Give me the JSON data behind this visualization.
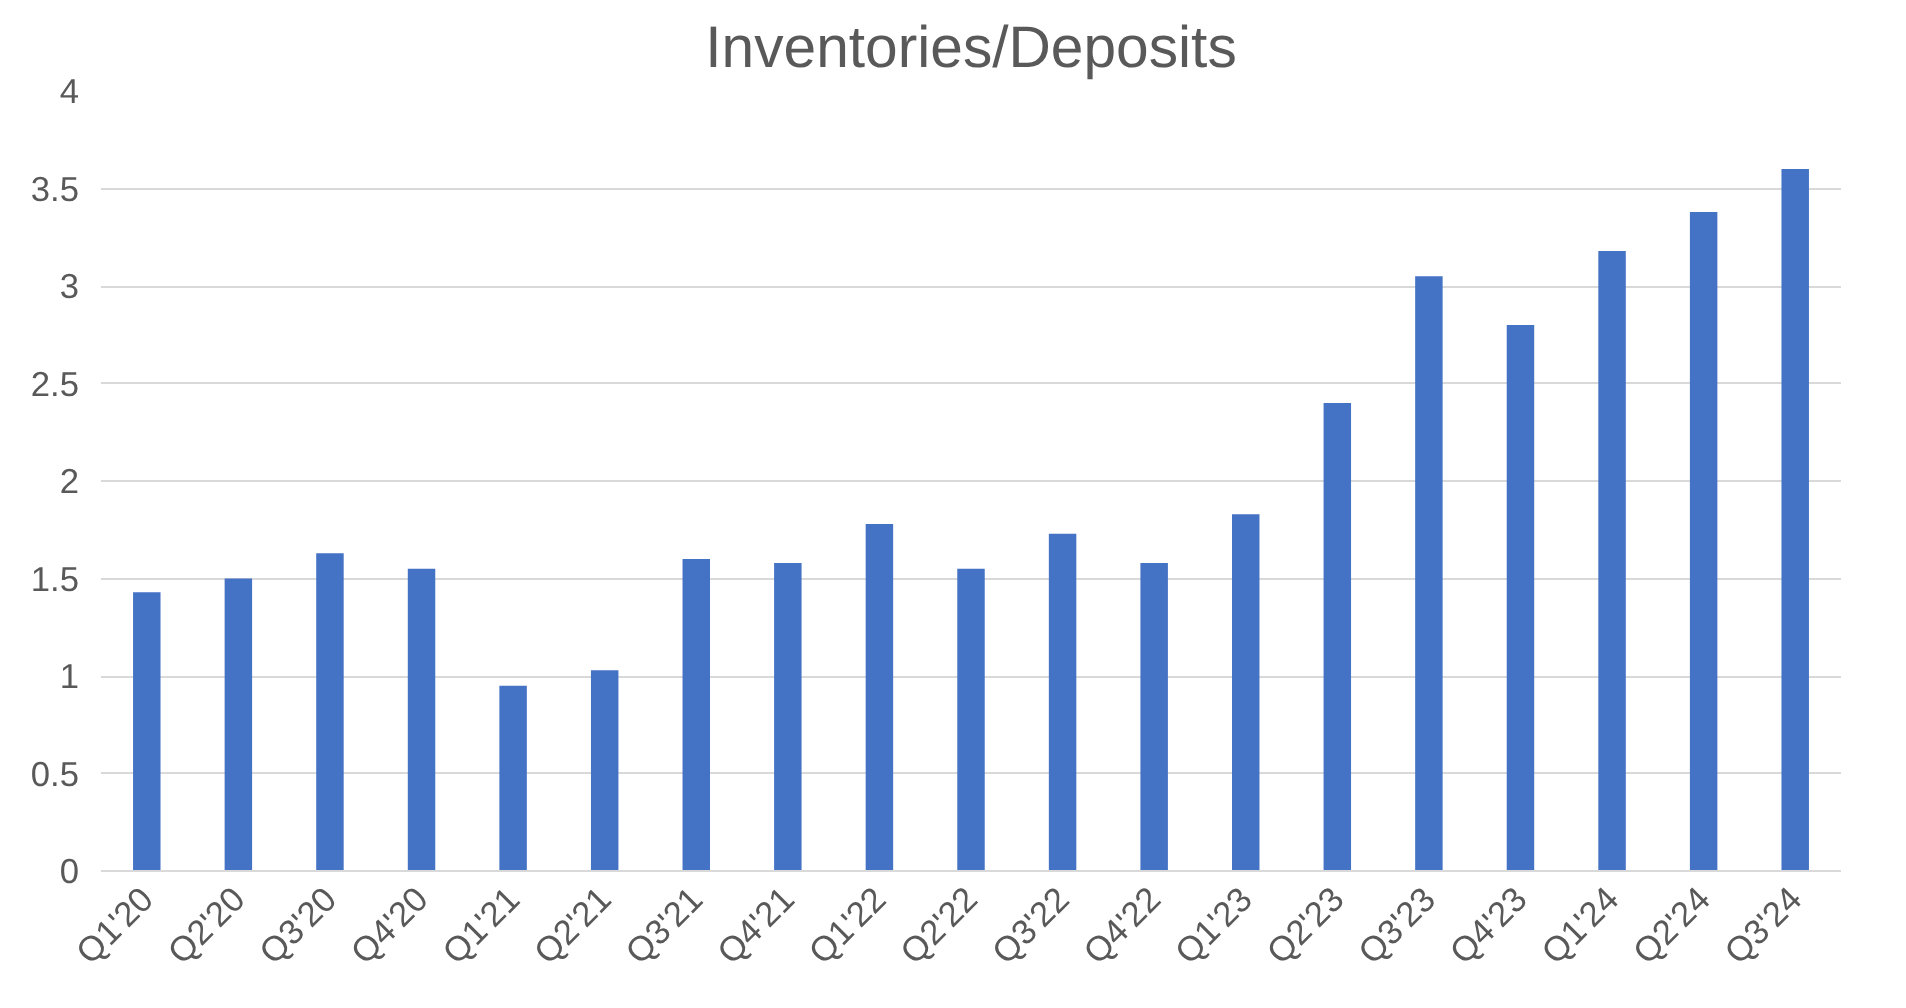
{
  "chart_data": {
    "type": "bar",
    "title": "Inventories/Deposits",
    "categories": [
      "Q1'20",
      "Q2'20",
      "Q3'20",
      "Q4'20",
      "Q1'21",
      "Q2'21",
      "Q3'21",
      "Q4'21",
      "Q1'22",
      "Q2'22",
      "Q3'22",
      "Q4'22",
      "Q1'23",
      "Q2'23",
      "Q3'23",
      "Q4'23",
      "Q1'24",
      "Q2'24",
      "Q3'24"
    ],
    "values": [
      1.43,
      1.5,
      1.63,
      1.55,
      0.95,
      1.03,
      1.6,
      1.58,
      1.78,
      1.55,
      1.73,
      1.58,
      1.83,
      2.4,
      3.05,
      2.8,
      3.18,
      3.38,
      3.6
    ],
    "color": "#4472c4",
    "ylim": [
      0,
      4
    ],
    "yticks": [
      0,
      0.5,
      1,
      1.5,
      2,
      2.5,
      3,
      3.5,
      4
    ],
    "grid": "y"
  }
}
